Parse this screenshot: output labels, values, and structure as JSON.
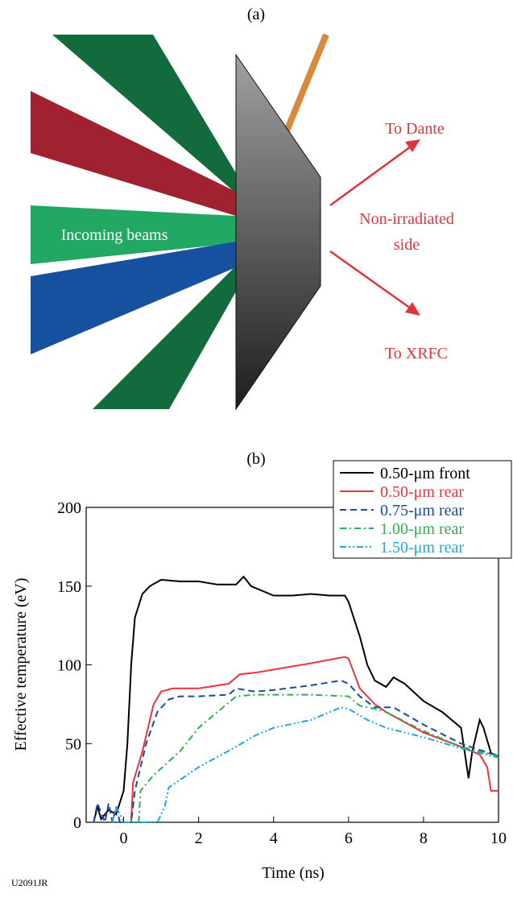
{
  "figure_id": "U2091JR",
  "diagram": {
    "label": "(a)",
    "beam_label": "Incoming beams",
    "to_dante": "To Dante",
    "side_label_lines": [
      "Non-irradiated",
      "side"
    ],
    "to_xrfc": "To XRFC"
  },
  "chart_data": {
    "type": "line",
    "label": "(b)",
    "x_label": "Time (ns)",
    "y_label": "Effective temperature (eV)",
    "xlim": [
      -1,
      10
    ],
    "ylim": [
      0,
      200
    ],
    "xticks": [
      0,
      2,
      4,
      6,
      8,
      10
    ],
    "yticks": [
      0,
      50,
      100,
      150,
      200
    ],
    "legend": "upper right",
    "series": [
      {
        "name": "0.50-μm front",
        "color": "#000000",
        "style": "solid",
        "x": [
          -0.8,
          -0.7,
          -0.6,
          -0.4,
          -0.2,
          0,
          0.1,
          0.2,
          0.3,
          0.5,
          0.7,
          1.0,
          1.5,
          2,
          2.5,
          3,
          3.2,
          3.4,
          4,
          4.5,
          5,
          5.5,
          5.9,
          6,
          6.3,
          6.5,
          6.7,
          7,
          7.2,
          7.5,
          8,
          8.5,
          9,
          9.2,
          9.3,
          9.5,
          9.6,
          9.8,
          10
        ],
        "values": [
          0,
          10,
          2,
          8,
          5,
          20,
          50,
          100,
          130,
          145,
          150,
          154,
          153,
          153,
          151,
          151,
          156,
          150,
          144,
          144,
          145,
          144,
          144,
          140,
          118,
          100,
          90,
          86,
          92,
          88,
          77,
          70,
          60,
          28,
          45,
          65,
          60,
          44,
          42
        ]
      },
      {
        "name": "0.50-μm rear",
        "color": "#e8343b",
        "style": "solid",
        "x": [
          0.2,
          0.25,
          0.5,
          0.8,
          1.0,
          1.3,
          2,
          2.8,
          3.1,
          3.5,
          4,
          5,
          5.9,
          6.0,
          6.3,
          6.7,
          7,
          8,
          9,
          9.5,
          9.7,
          9.8,
          10
        ],
        "values": [
          0,
          25,
          45,
          75,
          83,
          85,
          85,
          88,
          94,
          95,
          97,
          101,
          105,
          104,
          85,
          75,
          70,
          57,
          48,
          43,
          35,
          20,
          20
        ]
      },
      {
        "name": "0.75-μm rear",
        "color": "#1a4a9b",
        "style": "dashed",
        "x": [
          -0.8,
          -0.7,
          -0.5,
          -0.4,
          -0.3,
          -0.2,
          -0.1,
          0.2,
          0.3,
          0.6,
          0.9,
          1.2,
          1.5,
          2,
          2.8,
          3,
          3.5,
          4,
          5,
          5.8,
          6,
          6.3,
          6.7,
          7.2,
          8,
          9,
          10
        ],
        "values": [
          0,
          12,
          0,
          12,
          0,
          10,
          0,
          0,
          20,
          50,
          70,
          78,
          80,
          80,
          81,
          85,
          83,
          84,
          87,
          90,
          88,
          80,
          73,
          73,
          62,
          50,
          42
        ]
      },
      {
        "name": "1.00-μm rear",
        "color": "#2ab04e",
        "style": "dashdot",
        "x": [
          0.4,
          0.45,
          0.8,
          1.5,
          2,
          2.5,
          3,
          3.5,
          5,
          6,
          6.3,
          6.7,
          7,
          8,
          9,
          10
        ],
        "values": [
          0,
          20,
          30,
          45,
          60,
          70,
          80,
          81,
          81,
          80,
          74,
          72,
          70,
          58,
          48,
          42
        ]
      },
      {
        "name": "1.50-μm rear",
        "color": "#1fa8d8",
        "style": "dashdotdot",
        "x": [
          -0.3,
          -0.2,
          0,
          0.9,
          1.1,
          1.2,
          1.5,
          2,
          3,
          3.5,
          4,
          5,
          5.8,
          6,
          6.5,
          7,
          8,
          9,
          10
        ],
        "values": [
          0,
          10,
          0,
          0,
          10,
          22,
          27,
          35,
          48,
          55,
          60,
          65,
          73,
          72,
          65,
          60,
          54,
          47,
          41
        ]
      }
    ]
  }
}
